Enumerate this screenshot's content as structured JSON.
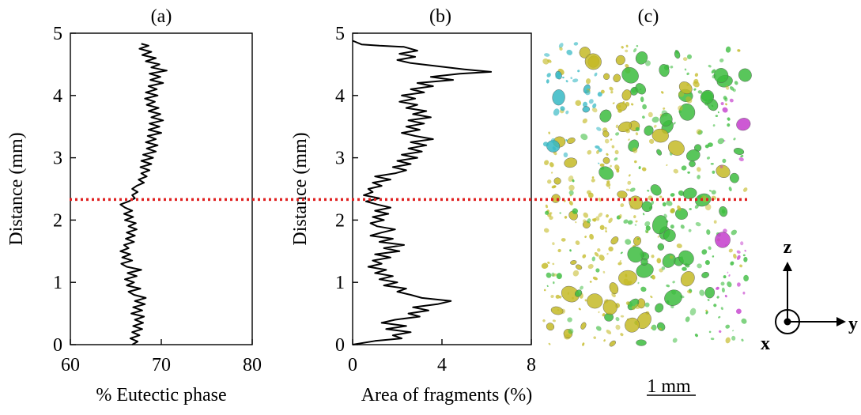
{
  "chart_data": [
    {
      "type": "line",
      "panel_label": "(a)",
      "xlabel": "% Eutectic phase",
      "ylabel": "Distance (mm)",
      "xlim": [
        60,
        80
      ],
      "ylim": [
        0,
        5
      ],
      "xticks": [
        "60",
        "70",
        "80"
      ],
      "yticks": [
        "0",
        "1",
        "2",
        "3",
        "4",
        "5"
      ],
      "series": [
        {
          "points": [
            [
              66.8,
              0.0
            ],
            [
              67.4,
              0.05
            ],
            [
              66.6,
              0.1
            ],
            [
              67.6,
              0.15
            ],
            [
              66.8,
              0.2
            ],
            [
              67.9,
              0.25
            ],
            [
              66.9,
              0.3
            ],
            [
              68.0,
              0.35
            ],
            [
              67.1,
              0.4
            ],
            [
              68.1,
              0.45
            ],
            [
              66.7,
              0.5
            ],
            [
              67.9,
              0.55
            ],
            [
              66.9,
              0.6
            ],
            [
              68.2,
              0.65
            ],
            [
              67.1,
              0.7
            ],
            [
              68.3,
              0.75
            ],
            [
              67.0,
              0.8
            ],
            [
              66.4,
              0.85
            ],
            [
              67.7,
              0.9
            ],
            [
              66.2,
              0.95
            ],
            [
              67.0,
              1.0
            ],
            [
              66.0,
              1.05
            ],
            [
              67.3,
              1.1
            ],
            [
              66.3,
              1.15
            ],
            [
              67.8,
              1.2
            ],
            [
              66.2,
              1.25
            ],
            [
              65.6,
              1.3
            ],
            [
              66.8,
              1.35
            ],
            [
              65.7,
              1.4
            ],
            [
              66.6,
              1.45
            ],
            [
              65.5,
              1.5
            ],
            [
              66.4,
              1.55
            ],
            [
              65.9,
              1.6
            ],
            [
              67.0,
              1.65
            ],
            [
              66.1,
              1.7
            ],
            [
              67.1,
              1.75
            ],
            [
              66.2,
              1.8
            ],
            [
              67.3,
              1.85
            ],
            [
              66.4,
              1.9
            ],
            [
              67.2,
              1.95
            ],
            [
              66.0,
              2.0
            ],
            [
              66.9,
              2.05
            ],
            [
              65.9,
              2.1
            ],
            [
              66.8,
              2.15
            ],
            [
              66.0,
              2.2
            ],
            [
              65.5,
              2.25
            ],
            [
              66.4,
              2.3
            ],
            [
              67.1,
              2.35
            ],
            [
              66.8,
              2.4
            ],
            [
              67.4,
              2.45
            ],
            [
              66.8,
              2.5
            ],
            [
              67.3,
              2.55
            ],
            [
              68.1,
              2.6
            ],
            [
              67.5,
              2.65
            ],
            [
              68.4,
              2.7
            ],
            [
              67.8,
              2.75
            ],
            [
              68.7,
              2.8
            ],
            [
              67.7,
              2.85
            ],
            [
              68.9,
              2.9
            ],
            [
              67.8,
              2.95
            ],
            [
              69.1,
              3.0
            ],
            [
              68.0,
              3.05
            ],
            [
              69.4,
              3.1
            ],
            [
              68.4,
              3.15
            ],
            [
              69.6,
              3.2
            ],
            [
              68.3,
              3.25
            ],
            [
              69.4,
              3.3
            ],
            [
              68.5,
              3.35
            ],
            [
              70.0,
              3.4
            ],
            [
              68.6,
              3.45
            ],
            [
              69.8,
              3.5
            ],
            [
              68.7,
              3.55
            ],
            [
              70.2,
              3.6
            ],
            [
              68.9,
              3.65
            ],
            [
              69.9,
              3.7
            ],
            [
              68.6,
              3.75
            ],
            [
              69.7,
              3.8
            ],
            [
              68.4,
              3.85
            ],
            [
              69.3,
              3.9
            ],
            [
              68.2,
              3.95
            ],
            [
              69.6,
              4.0
            ],
            [
              68.3,
              4.05
            ],
            [
              69.5,
              4.1
            ],
            [
              68.6,
              4.15
            ],
            [
              70.2,
              4.2
            ],
            [
              68.8,
              4.25
            ],
            [
              69.9,
              4.3
            ],
            [
              68.7,
              4.35
            ],
            [
              70.6,
              4.4
            ],
            [
              68.9,
              4.45
            ],
            [
              69.8,
              4.5
            ],
            [
              68.3,
              4.55
            ],
            [
              69.4,
              4.6
            ],
            [
              67.9,
              4.65
            ],
            [
              68.9,
              4.7
            ],
            [
              67.6,
              4.75
            ],
            [
              68.6,
              4.8
            ],
            [
              67.8,
              4.83
            ]
          ]
        }
      ]
    },
    {
      "type": "line",
      "panel_label": "(b)",
      "xlabel": "Area of fragments (%)",
      "ylabel": "Distance  (mm)",
      "xlim": [
        0,
        8
      ],
      "ylim": [
        0,
        5
      ],
      "xticks": [
        "0",
        "4",
        "8"
      ],
      "yticks": [
        "0",
        "1",
        "2",
        "3",
        "4",
        "5"
      ],
      "series": [
        {
          "points": [
            [
              0.0,
              0.0
            ],
            [
              1.0,
              0.06
            ],
            [
              2.2,
              0.1
            ],
            [
              1.8,
              0.15
            ],
            [
              2.6,
              0.2
            ],
            [
              1.5,
              0.25
            ],
            [
              2.4,
              0.3
            ],
            [
              1.3,
              0.35
            ],
            [
              1.9,
              0.4
            ],
            [
              3.0,
              0.45
            ],
            [
              2.5,
              0.5
            ],
            [
              3.4,
              0.55
            ],
            [
              2.7,
              0.6
            ],
            [
              3.8,
              0.65
            ],
            [
              4.4,
              0.7
            ],
            [
              3.1,
              0.75
            ],
            [
              2.6,
              0.8
            ],
            [
              2.0,
              0.85
            ],
            [
              2.4,
              0.9
            ],
            [
              1.4,
              0.95
            ],
            [
              2.0,
              1.0
            ],
            [
              1.2,
              1.05
            ],
            [
              1.8,
              1.1
            ],
            [
              1.0,
              1.15
            ],
            [
              1.5,
              1.2
            ],
            [
              0.7,
              1.25
            ],
            [
              1.3,
              1.3
            ],
            [
              0.9,
              1.35
            ],
            [
              1.7,
              1.4
            ],
            [
              1.0,
              1.45
            ],
            [
              2.1,
              1.5
            ],
            [
              1.4,
              1.55
            ],
            [
              2.3,
              1.6
            ],
            [
              1.2,
              1.65
            ],
            [
              1.8,
              1.7
            ],
            [
              0.8,
              1.75
            ],
            [
              1.3,
              1.8
            ],
            [
              1.9,
              1.85
            ],
            [
              1.1,
              1.9
            ],
            [
              0.8,
              1.95
            ],
            [
              1.4,
              2.0
            ],
            [
              0.9,
              2.05
            ],
            [
              1.6,
              2.1
            ],
            [
              1.0,
              2.15
            ],
            [
              1.7,
              2.2
            ],
            [
              1.1,
              2.25
            ],
            [
              0.6,
              2.3
            ],
            [
              1.2,
              2.35
            ],
            [
              0.5,
              2.4
            ],
            [
              0.9,
              2.45
            ],
            [
              0.7,
              2.5
            ],
            [
              1.3,
              2.55
            ],
            [
              0.9,
              2.6
            ],
            [
              1.7,
              2.65
            ],
            [
              1.0,
              2.7
            ],
            [
              1.9,
              2.75
            ],
            [
              2.4,
              2.8
            ],
            [
              1.8,
              2.85
            ],
            [
              2.6,
              2.9
            ],
            [
              2.0,
              2.95
            ],
            [
              2.9,
              3.0
            ],
            [
              2.2,
              3.05
            ],
            [
              3.1,
              3.1
            ],
            [
              2.5,
              3.15
            ],
            [
              3.3,
              3.2
            ],
            [
              2.6,
              3.25
            ],
            [
              3.6,
              3.3
            ],
            [
              2.8,
              3.35
            ],
            [
              2.2,
              3.4
            ],
            [
              3.0,
              3.45
            ],
            [
              2.4,
              3.5
            ],
            [
              3.2,
              3.55
            ],
            [
              2.5,
              3.6
            ],
            [
              3.5,
              3.65
            ],
            [
              2.7,
              3.7
            ],
            [
              3.3,
              3.75
            ],
            [
              2.4,
              3.8
            ],
            [
              2.9,
              3.85
            ],
            [
              2.1,
              3.9
            ],
            [
              2.8,
              3.95
            ],
            [
              2.2,
              4.0
            ],
            [
              3.2,
              4.05
            ],
            [
              2.6,
              4.1
            ],
            [
              3.6,
              4.15
            ],
            [
              2.9,
              4.2
            ],
            [
              4.5,
              4.25
            ],
            [
              3.5,
              4.3
            ],
            [
              4.8,
              4.35
            ],
            [
              6.2,
              4.38
            ],
            [
              5.0,
              4.42
            ],
            [
              3.8,
              4.47
            ],
            [
              2.6,
              4.52
            ],
            [
              2.0,
              4.57
            ],
            [
              2.8,
              4.62
            ],
            [
              2.1,
              4.67
            ],
            [
              2.9,
              4.72
            ],
            [
              2.3,
              4.78
            ],
            [
              1.2,
              4.8
            ],
            [
              0.4,
              4.82
            ],
            [
              0.0,
              4.88
            ]
          ]
        }
      ]
    }
  ],
  "image_panel": {
    "panel_label": "(c)",
    "scale_bar_label": "1 mm",
    "axes_triad": {
      "z_label": "z",
      "y_label": "y",
      "x_label": "x"
    },
    "particle_colors": [
      "#c4ba26",
      "#3cbc3e",
      "#35b8c4",
      "#c43ccc"
    ]
  },
  "reference_line": {
    "distance": 2.33,
    "unit": "mm",
    "color": "#e02020"
  }
}
